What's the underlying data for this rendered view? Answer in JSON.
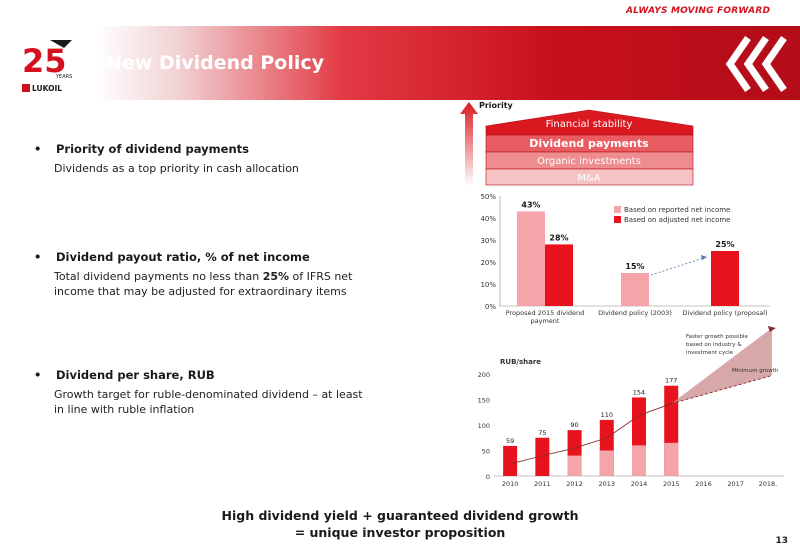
{
  "header": {
    "tagline": "ALWAYS MOVING FORWARD",
    "title": "New Dividend Policy",
    "logo_text": "LUKOIL",
    "logo_years": "YEARS",
    "logo_number": "25"
  },
  "bullets": [
    {
      "heading": "Priority of dividend payments",
      "text": "Dividends as a top priority in cash allocation"
    },
    {
      "heading": "Dividend payout ratio, % of net income",
      "text_before": "Total dividend payments no less than ",
      "text_bold": "25%",
      "text_after": " of IFRS net income that may be adjusted for extraordinary items"
    },
    {
      "heading": "Dividend per share, RUB",
      "text": "Growth target for ruble-denominated dividend – at least in line with ruble inflation"
    }
  ],
  "pyramid": {
    "label": "Priority",
    "levels": [
      "Financial stability",
      "Dividend payments",
      "Organic investments",
      "M&A"
    ],
    "colors": [
      "#d9191f",
      "#e85c62",
      "#ef8c90",
      "#f6c3c5"
    ]
  },
  "chart_data": [
    {
      "type": "bar",
      "title": "",
      "categories": [
        "Proposed 2015 dividend payment",
        "Dividend policy (2003)",
        "Dividend policy (proposal)"
      ],
      "category_lines": [
        [
          "Proposed 2015 dividend",
          "payment"
        ],
        [
          "Dividend policy (2003)"
        ],
        [
          "Dividend policy (proposal)"
        ]
      ],
      "series": [
        {
          "name": "Based on reported net income",
          "values": [
            43,
            15,
            null
          ],
          "color": "#f4a4aa"
        },
        {
          "name": "Based on adjusted net income",
          "values": [
            28,
            null,
            25
          ],
          "color": "#e8131c"
        }
      ],
      "value_labels": [
        "43%",
        "28%",
        "15%",
        "25%"
      ],
      "yticks": [
        "0%",
        "10%",
        "20%",
        "30%",
        "40%",
        "50%"
      ],
      "ylim": [
        0,
        50
      ],
      "legend": "top-right"
    },
    {
      "type": "bar",
      "ylabel": "RUB/share",
      "categories": [
        "2010",
        "2011",
        "2012",
        "2013",
        "2014",
        "2015",
        "2016",
        "2017",
        "2018."
      ],
      "totals": [
        59,
        75,
        90,
        110,
        154,
        177,
        null,
        null,
        null
      ],
      "total_labels": [
        "59",
        "75",
        "90",
        "110",
        "154",
        "177"
      ],
      "lower_segment": [
        null,
        null,
        40,
        50,
        60,
        65,
        null,
        null,
        null
      ],
      "yticks": [
        "0",
        "50",
        "100",
        "150",
        "200"
      ],
      "ylim": [
        0,
        200
      ],
      "annotations": {
        "faster": "Faster growth possible based on industry & investment cycle",
        "faster_lines": [
          "Faster growth possible",
          "based on industry &",
          "investment cycle"
        ],
        "minimum": "Minimum growth"
      },
      "colors": {
        "bar": "#e8131c",
        "lower": "#f4a4aa",
        "trend": "#8a2a2a"
      }
    }
  ],
  "footer": {
    "line1": "High dividend yield + guaranteed dividend growth",
    "line2": "= unique investor proposition"
  },
  "page_number": "13"
}
